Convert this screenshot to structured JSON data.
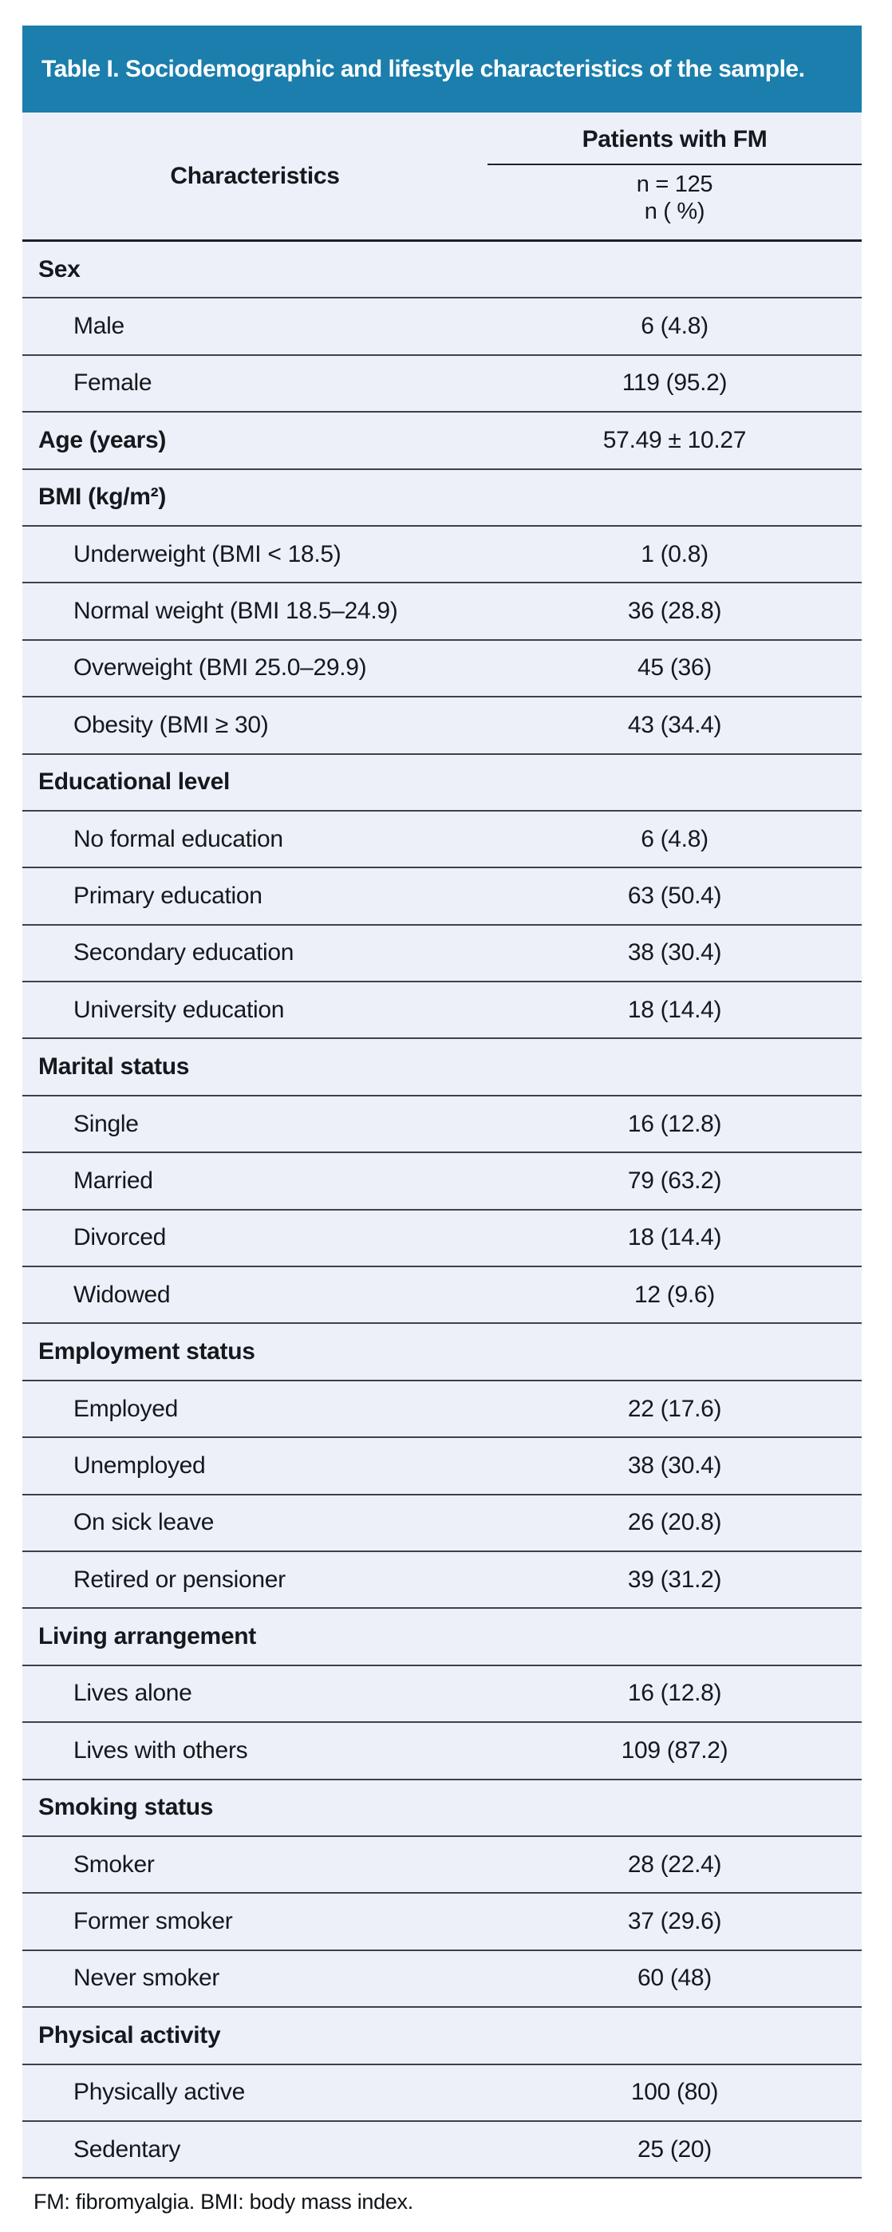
{
  "table": {
    "title": "Table I. Sociodemographic and lifestyle characteristics of the sample.",
    "header": {
      "characteristics_label": "Characteristics",
      "group_label": "Patients with FM",
      "sample_size": "n = 125",
      "unit_label": "n ( %)"
    },
    "rows": [
      {
        "label": "Sex",
        "value": "",
        "bold": true
      },
      {
        "label": "Male",
        "value": "6 (4.8)",
        "bold": false
      },
      {
        "label": "Female",
        "value": "119 (95.2)",
        "bold": false
      },
      {
        "label": "Age (years)",
        "value": "57.49 ± 10.27",
        "bold": true
      },
      {
        "label": "BMI (kg/m²)",
        "value": "",
        "bold": true
      },
      {
        "label": "Underweight (BMI < 18.5)",
        "value": "1 (0.8)",
        "bold": false
      },
      {
        "label": "Normal weight (BMI 18.5–24.9)",
        "value": "36 (28.8)",
        "bold": false
      },
      {
        "label": "Overweight (BMI 25.0–29.9)",
        "value": "45 (36)",
        "bold": false
      },
      {
        "label": "Obesity (BMI ≥ 30)",
        "value": "43 (34.4)",
        "bold": false
      },
      {
        "label": "Educational level",
        "value": "",
        "bold": true
      },
      {
        "label": "No formal education",
        "value": "6 (4.8)",
        "bold": false
      },
      {
        "label": "Primary education",
        "value": "63 (50.4)",
        "bold": false
      },
      {
        "label": "Secondary education",
        "value": "38 (30.4)",
        "bold": false
      },
      {
        "label": "University education",
        "value": "18 (14.4)",
        "bold": false
      },
      {
        "label": "Marital status",
        "value": "",
        "bold": true
      },
      {
        "label": "Single",
        "value": "16 (12.8)",
        "bold": false
      },
      {
        "label": "Married",
        "value": "79 (63.2)",
        "bold": false
      },
      {
        "label": "Divorced",
        "value": "18 (14.4)",
        "bold": false
      },
      {
        "label": "Widowed",
        "value": "12 (9.6)",
        "bold": false
      },
      {
        "label": "Employment status",
        "value": "",
        "bold": true
      },
      {
        "label": "Employed",
        "value": "22 (17.6)",
        "bold": false
      },
      {
        "label": "Unemployed",
        "value": "38 (30.4)",
        "bold": false
      },
      {
        "label": "On sick leave",
        "value": "26 (20.8)",
        "bold": false
      },
      {
        "label": "Retired or pensioner",
        "value": "39 (31.2)",
        "bold": false
      },
      {
        "label": "Living arrangement",
        "value": "",
        "bold": true
      },
      {
        "label": "Lives alone",
        "value": "16 (12.8)",
        "bold": false
      },
      {
        "label": "Lives with others",
        "value": "109 (87.2)",
        "bold": false
      },
      {
        "label": "Smoking status",
        "value": "",
        "bold": true
      },
      {
        "label": "Smoker",
        "value": "28 (22.4)",
        "bold": false
      },
      {
        "label": "Former smoker",
        "value": "37 (29.6)",
        "bold": false
      },
      {
        "label": "Never smoker",
        "value": "60 (48)",
        "bold": false
      },
      {
        "label": "Physical activity",
        "value": "",
        "bold": true
      },
      {
        "label": "Physically active",
        "value": "100 (80)",
        "bold": false
      },
      {
        "label": "Sedentary",
        "value": "25 (20)",
        "bold": false
      }
    ],
    "footnote": "FM: fibromyalgia. BMI: body mass index.",
    "colors": {
      "header_bg": "#1B7EAC",
      "title_text": "#FFFFFF",
      "row_bg": "#EDF0F8",
      "rule": "#3D4148",
      "heavy_rule": "#1C1F24"
    }
  }
}
